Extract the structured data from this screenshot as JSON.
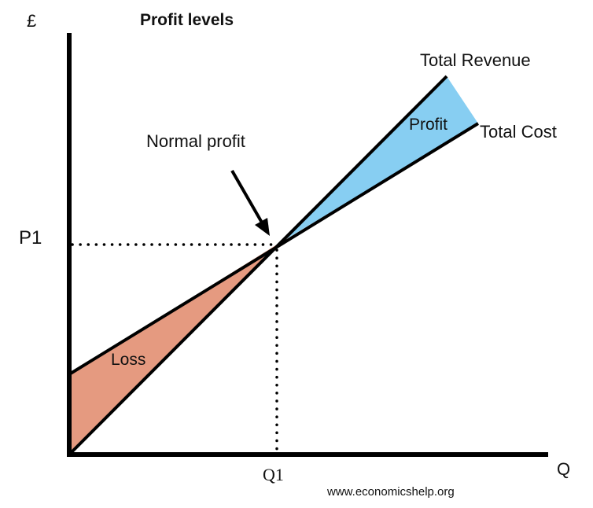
{
  "title": "Profit levels",
  "y_axis_symbol": "£",
  "x_axis_symbol": "Q",
  "price_label": "P1",
  "quantity_label": "Q1",
  "annotation": "Normal profit",
  "curves": {
    "revenue": "Total Revenue",
    "cost": "Total Cost"
  },
  "regions": {
    "profit": "Profit",
    "loss": "Loss"
  },
  "credit": "www.economicshelp.org",
  "colors": {
    "profit_fill": "#87CEF2",
    "loss_fill": "#E59A80",
    "line": "#000000"
  }
}
